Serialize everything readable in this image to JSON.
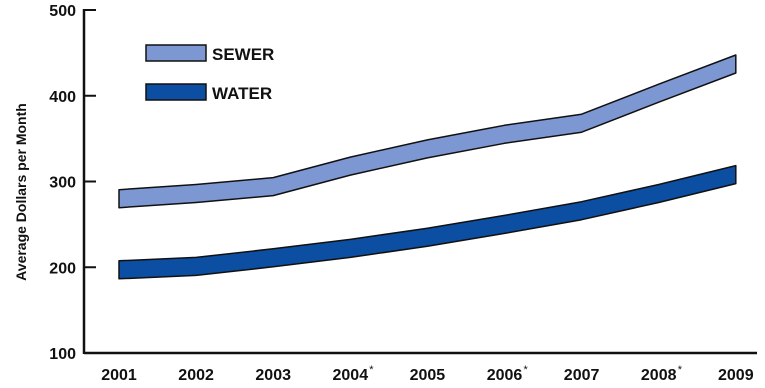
{
  "chart_data": {
    "type": "line",
    "categories": [
      "2001",
      "2002",
      "2003",
      "2004",
      "2005",
      "2006",
      "2007",
      "2008",
      "2009"
    ],
    "category_markers": [
      "",
      "",
      "",
      "*",
      "",
      "*",
      "",
      "*",
      ""
    ],
    "ylabel": "Average Dollars per Month",
    "ylim": [
      100,
      500
    ],
    "yticks": [
      100,
      200,
      300,
      400,
      500
    ],
    "grid": false,
    "legend_position": "top-left",
    "series": [
      {
        "name": "SEWER",
        "color": "#7d97d3",
        "values": [
          280,
          286,
          294,
          318,
          338,
          355,
          368,
          403,
          437
        ]
      },
      {
        "name": "WATER",
        "color": "#0b4ea2",
        "values": [
          197,
          201,
          211,
          222,
          235,
          250,
          266,
          286,
          308
        ]
      }
    ]
  }
}
